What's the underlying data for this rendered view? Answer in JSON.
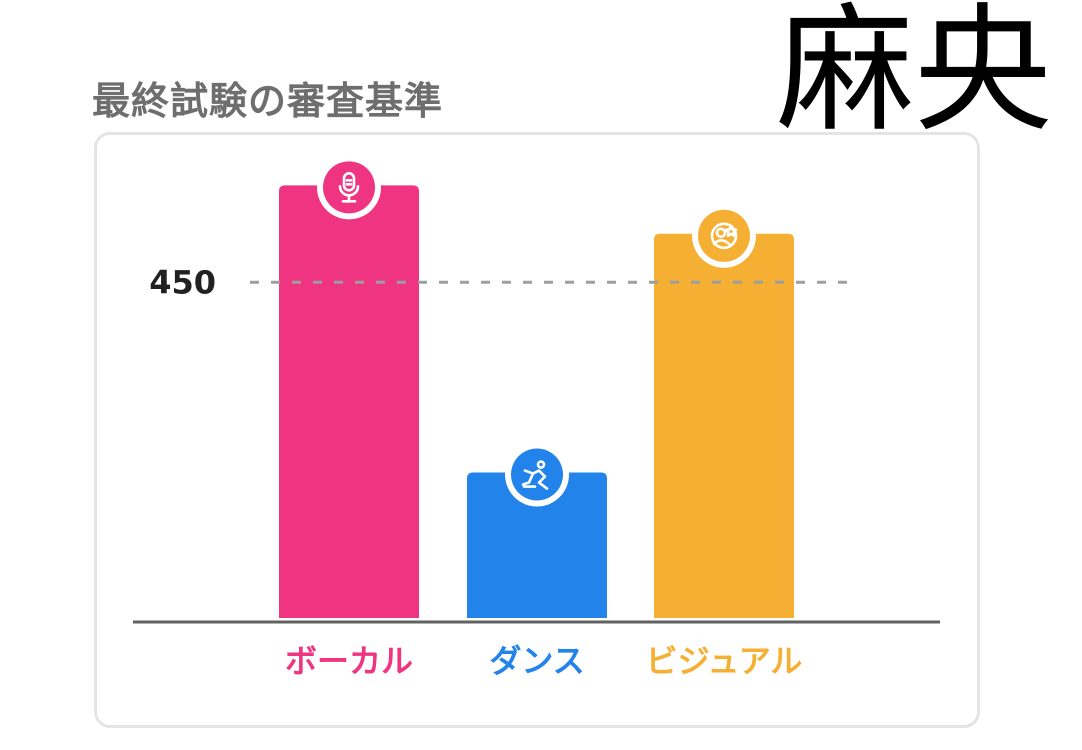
{
  "stamp_text": "麻央",
  "chart_data": {
    "type": "bar",
    "title": "最終試験の審査基準",
    "categories": [
      "ボーカル",
      "ダンス",
      "ビジュアル"
    ],
    "values": [
      580,
      195,
      515
    ],
    "colors": [
      "#ef3582",
      "#2283ea",
      "#f5b034"
    ],
    "icons": [
      "microphone-icon",
      "dance-icon",
      "star-face-icon"
    ],
    "reference_line": {
      "value": 450,
      "label": "450",
      "style": "dashed"
    },
    "yticks_shown": [
      "450"
    ],
    "xlabel": "",
    "ylabel": "",
    "grid": false,
    "legend": "none"
  }
}
